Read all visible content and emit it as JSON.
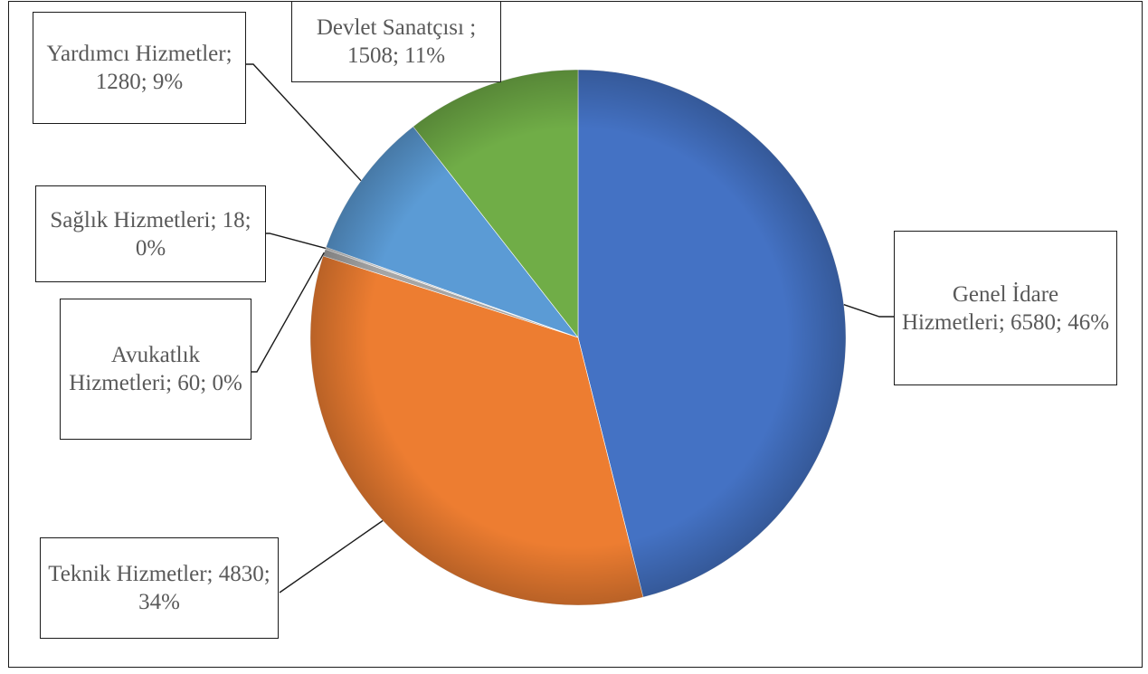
{
  "chart_data": {
    "type": "pie",
    "title": "",
    "start_angle_deg": 0,
    "direction": "clockwise",
    "series": [
      {
        "values": [
          6580,
          4830,
          60,
          18,
          1280,
          1508
        ],
        "categories": [
          "Genel İdare Hizmetleri",
          "Teknik Hizmetler",
          "Avukatlık Hizmetleri",
          "Sağlık Hizmetleri",
          "Yardımcı Hizmetler",
          "Devlet Sanatçısı"
        ],
        "percents": [
          "46%",
          "34%",
          "0%",
          "0%",
          "9%",
          "11%"
        ]
      }
    ],
    "data_labels": [
      "Genel İdare Hizmetleri; 6580; 46%",
      "Teknik Hizmetler; 4830; 34%",
      "Avukatlık Hizmetleri; 60; 0%",
      "Sağlık Hizmetleri; 18; 0%",
      "Yardımcı Hizmetler; 1280; 9%",
      "Devlet Sanatçısı ; 1508; 11%"
    ],
    "colors": [
      "#4472c4",
      "#ed7d31",
      "#a5a5a5",
      "#bfbfbf",
      "#5b9bd5",
      "#70ad47"
    ],
    "legend": "none"
  }
}
